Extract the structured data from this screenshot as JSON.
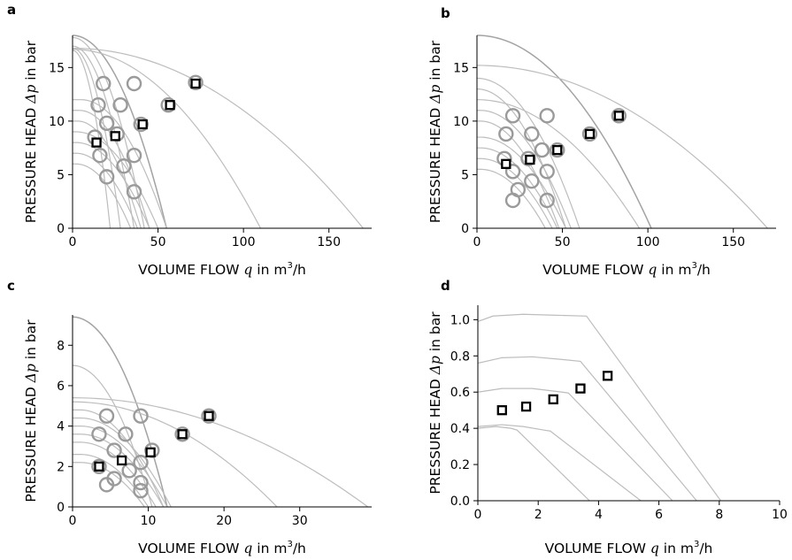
{
  "figure": {
    "colors": {
      "curve": "#bdbdbd",
      "curve_emphasis": "#a3a3a3",
      "circle_marker": "#9a9a9a",
      "square_marker_edge": "#000000"
    }
  },
  "chart_data": [
    {
      "panel": "a",
      "type": "scatter",
      "xlabel": "VOLUME FLOW",
      "xlabel_var": "q",
      "xlabel_unit": " in m",
      "xlabel_unit_sup": "3",
      "xlabel_unit_tail": "/h",
      "ylabel": "PRESSURE HEAD",
      "ylabel_var": "Δp",
      "ylabel_unit": " in bar",
      "xlim": [
        0,
        175
      ],
      "ylim": [
        0,
        18
      ],
      "xticks": [
        0,
        50,
        100,
        150
      ],
      "yticks": [
        0,
        5,
        10,
        15
      ],
      "ytick_decimals": 0,
      "series": [
        {
          "marker": "circle",
          "points": [
            [
              13,
              8.5
            ],
            [
              15,
              11.5
            ],
            [
              18,
              13.5
            ],
            [
              20,
              9.8
            ],
            [
              26,
              8.8
            ],
            [
              28,
              11.5
            ],
            [
              36,
              13.5
            ],
            [
              16,
              6.8
            ],
            [
              20,
              4.8
            ],
            [
              30,
              5.8
            ],
            [
              36,
              6.8
            ],
            [
              36,
              3.4
            ],
            [
              40,
              9.7
            ],
            [
              56,
              11.5
            ],
            [
              72,
              13.6
            ]
          ]
        },
        {
          "marker": "square",
          "points": [
            [
              14,
              8.0
            ],
            [
              25,
              8.6
            ],
            [
              41,
              9.7
            ],
            [
              57,
              11.5
            ],
            [
              72,
              13.5
            ]
          ]
        }
      ],
      "curves": [
        {
          "q0": 0,
          "h0": 18.0,
          "qmax": 55,
          "style": "dark"
        },
        {
          "q0": 0,
          "h0": 17.8,
          "qmax": 42
        },
        {
          "q0": 0,
          "h0": 17.0,
          "qmax": 36
        },
        {
          "q0": 0,
          "h0": 16.8,
          "qmax": 28
        },
        {
          "q0": 0,
          "h0": 16.6,
          "qmax": 22
        },
        {
          "q0": 0,
          "h0": 16.7,
          "qmax": 110
        },
        {
          "q0": 0,
          "h0": 16.8,
          "qmax": 170
        },
        {
          "q0": 5,
          "h0": 12.0,
          "qmax": 55
        },
        {
          "q0": 4,
          "h0": 11.0,
          "qmax": 45
        },
        {
          "q0": 3,
          "h0": 10.0,
          "qmax": 40
        },
        {
          "q0": 2,
          "h0": 9.0,
          "qmax": 50
        },
        {
          "q0": 2,
          "h0": 8.0,
          "qmax": 45
        },
        {
          "q0": 2,
          "h0": 7.0,
          "qmax": 38
        },
        {
          "q0": 2,
          "h0": 6.0,
          "qmax": 34
        }
      ]
    },
    {
      "panel": "b",
      "type": "scatter",
      "xlabel": "VOLUME FLOW",
      "xlabel_var": "q",
      "xlabel_unit": " in m",
      "xlabel_unit_sup": "3",
      "xlabel_unit_tail": "/h",
      "ylabel": "PRESSURE HEAD",
      "ylabel_var": "Δp",
      "ylabel_unit": " in bar",
      "xlim": [
        0,
        175
      ],
      "ylim": [
        0,
        18
      ],
      "xticks": [
        0,
        50,
        100,
        150
      ],
      "yticks": [
        0,
        5,
        10,
        15
      ],
      "ytick_decimals": 0,
      "series": [
        {
          "marker": "circle",
          "points": [
            [
              16,
              6.5
            ],
            [
              17,
              8.8
            ],
            [
              21,
              10.5
            ],
            [
              21,
              5.3
            ],
            [
              21,
              2.6
            ],
            [
              24,
              3.6
            ],
            [
              30,
              6.5
            ],
            [
              32,
              8.8
            ],
            [
              32,
              4.4
            ],
            [
              38,
              7.3
            ],
            [
              41,
              10.5
            ],
            [
              41,
              5.3
            ],
            [
              41,
              2.6
            ],
            [
              47,
              7.3
            ],
            [
              66,
              8.8
            ],
            [
              83,
              10.5
            ]
          ]
        },
        {
          "marker": "square",
          "points": [
            [
              17,
              6.0
            ],
            [
              31,
              6.4
            ],
            [
              47,
              7.3
            ],
            [
              66,
              8.8
            ],
            [
              83,
              10.5
            ]
          ]
        }
      ],
      "curves": [
        {
          "q0": 0,
          "h0": 18.0,
          "qmax": 102,
          "style": "dark"
        },
        {
          "q0": 0,
          "h0": 15.2,
          "qmax": 170
        },
        {
          "q0": 0,
          "h0": 14.0,
          "qmax": 60
        },
        {
          "q0": 0,
          "h0": 13.0,
          "qmax": 52
        },
        {
          "q0": 0,
          "h0": 12.0,
          "qmax": 95
        },
        {
          "q0": 2,
          "h0": 11.0,
          "qmax": 55
        },
        {
          "q0": 2,
          "h0": 10.0,
          "qmax": 48
        },
        {
          "q0": 2,
          "h0": 8.5,
          "qmax": 52
        },
        {
          "q0": 2,
          "h0": 7.5,
          "qmax": 47
        },
        {
          "q0": 2,
          "h0": 6.5,
          "qmax": 44
        },
        {
          "q0": 2,
          "h0": 5.5,
          "qmax": 40
        }
      ]
    },
    {
      "panel": "c",
      "type": "scatter",
      "xlabel": "VOLUME FLOW",
      "xlabel_var": "q",
      "xlabel_unit": " in m",
      "xlabel_unit_sup": "3",
      "xlabel_unit_tail": "/h",
      "ylabel": "PRESSURE HEAD",
      "ylabel_var": "Δp",
      "ylabel_unit": " in bar",
      "xlim": [
        0,
        39.5
      ],
      "ylim": [
        0,
        9.5
      ],
      "xticks": [
        0,
        10,
        20,
        30
      ],
      "yticks": [
        0,
        2,
        4,
        6,
        8
      ],
      "ytick_decimals": 0,
      "series": [
        {
          "marker": "circle",
          "points": [
            [
              3.5,
              2.0
            ],
            [
              3.5,
              3.6
            ],
            [
              4.5,
              4.5
            ],
            [
              4.5,
              1.1
            ],
            [
              5.5,
              1.4
            ],
            [
              5.5,
              2.8
            ],
            [
              7,
              3.6
            ],
            [
              7.5,
              1.8
            ],
            [
              9,
              4.5
            ],
            [
              9,
              0.8
            ],
            [
              9,
              1.2
            ],
            [
              9,
              2.2
            ],
            [
              10.5,
              2.8
            ],
            [
              14.5,
              3.6
            ],
            [
              18,
              4.5
            ]
          ]
        },
        {
          "marker": "square",
          "points": [
            [
              3.5,
              2.0
            ],
            [
              6.5,
              2.3
            ],
            [
              10.3,
              2.7
            ],
            [
              14.5,
              3.6
            ],
            [
              18,
              4.5
            ]
          ]
        }
      ],
      "curves": [
        {
          "q0": 0,
          "h0": 9.4,
          "qmax": 12.5,
          "style": "dark"
        },
        {
          "q0": 0,
          "h0": 7.0,
          "qmax": 10.5
        },
        {
          "q0": 0,
          "h0": 5.4,
          "qmax": 39
        },
        {
          "q0": 0,
          "h0": 5.2,
          "qmax": 27
        },
        {
          "q0": 1,
          "h0": 4.8,
          "qmax": 12
        },
        {
          "q0": 1,
          "h0": 4.4,
          "qmax": 13
        },
        {
          "q0": 1,
          "h0": 4.0,
          "qmax": 12.5
        },
        {
          "q0": 1,
          "h0": 3.6,
          "qmax": 12
        },
        {
          "q0": 1,
          "h0": 3.2,
          "qmax": 11
        },
        {
          "q0": 1,
          "h0": 2.6,
          "qmax": 10
        },
        {
          "q0": 1,
          "h0": 2.2,
          "qmax": 9.5
        }
      ]
    },
    {
      "panel": "d",
      "type": "scatter",
      "xlabel": "VOLUME FLOW",
      "xlabel_var": "q",
      "xlabel_unit": " in m",
      "xlabel_unit_sup": "3",
      "xlabel_unit_tail": "/h",
      "ylabel": "PRESSURE HEAD",
      "ylabel_var": "Δp",
      "ylabel_unit": " in bar",
      "xlim": [
        0,
        10
      ],
      "ylim": [
        0,
        1.08
      ],
      "xticks": [
        0,
        2,
        4,
        6,
        8,
        10
      ],
      "yticks": [
        0.0,
        0.2,
        0.4,
        0.6,
        0.8,
        1.0
      ],
      "ytick_decimals": 1,
      "series": [
        {
          "marker": "square",
          "points": [
            [
              0.8,
              0.5
            ],
            [
              1.6,
              0.52
            ],
            [
              2.5,
              0.56
            ],
            [
              3.4,
              0.62
            ],
            [
              4.3,
              0.69
            ]
          ]
        }
      ],
      "curves_piecewise": [
        {
          "points": [
            [
              0.0,
              0.99
            ],
            [
              0.5,
              1.02
            ],
            [
              1.5,
              1.03
            ],
            [
              2.5,
              1.025
            ],
            [
              3.6,
              1.02
            ],
            [
              8.05,
              0.0
            ]
          ]
        },
        {
          "points": [
            [
              0.0,
              0.76
            ],
            [
              0.8,
              0.79
            ],
            [
              1.8,
              0.795
            ],
            [
              2.8,
              0.78
            ],
            [
              3.4,
              0.77
            ],
            [
              7.25,
              0.0
            ]
          ]
        },
        {
          "points": [
            [
              0.0,
              0.6
            ],
            [
              0.8,
              0.62
            ],
            [
              1.8,
              0.62
            ],
            [
              2.8,
              0.6
            ],
            [
              3.0,
              0.595
            ],
            [
              6.45,
              0.0
            ]
          ]
        },
        {
          "points": [
            [
              0.0,
              0.41
            ],
            [
              0.8,
              0.42
            ],
            [
              1.5,
              0.41
            ],
            [
              2.2,
              0.39
            ],
            [
              2.4,
              0.385
            ],
            [
              5.4,
              0.0
            ]
          ]
        },
        {
          "points": [
            [
              0.0,
              0.4
            ],
            [
              0.6,
              0.41
            ],
            [
              1.1,
              0.4
            ],
            [
              1.3,
              0.39
            ],
            [
              3.7,
              0.0
            ]
          ]
        }
      ]
    }
  ]
}
